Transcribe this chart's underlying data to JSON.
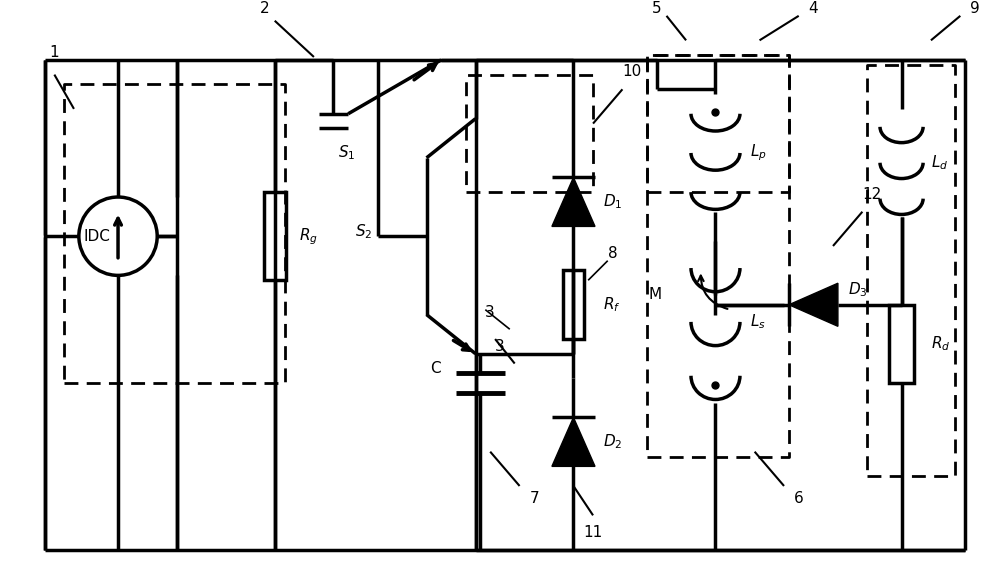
{
  "bg_color": "#ffffff",
  "line_color": "#000000",
  "lw": 2.5,
  "lw_dash": 2.0,
  "figsize": [
    10.0,
    5.79
  ],
  "dpi": 100,
  "xlim": [
    0,
    100
  ],
  "ylim": [
    0,
    57.9
  ]
}
